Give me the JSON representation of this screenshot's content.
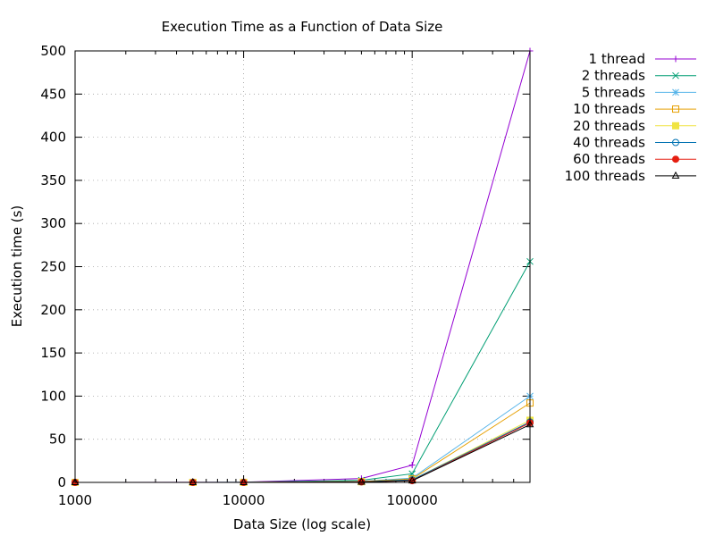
{
  "chart_data": {
    "type": "line",
    "title": "Execution Time as a Function of Data Size",
    "xlabel": "Data Size (log scale)",
    "ylabel": "Execution time (s)",
    "xscale": "log",
    "xlim": [
      1000,
      500000
    ],
    "ylim": [
      0,
      500
    ],
    "xticks": [
      1000,
      10000,
      100000
    ],
    "xtick_labels": [
      "1000",
      "10000",
      "100000"
    ],
    "yticks": [
      0,
      50,
      100,
      150,
      200,
      250,
      300,
      350,
      400,
      450,
      500
    ],
    "yticks_labels": [
      "0",
      "50",
      "100",
      "150",
      "200",
      "250",
      "300",
      "350",
      "400",
      "450",
      "500"
    ],
    "grid": true,
    "legend_position": "outside-top-right",
    "x": [
      1000,
      5000,
      10000,
      50000,
      100000,
      500000
    ],
    "series": [
      {
        "name": "1 thread",
        "color": "#9400d3",
        "marker": "plus",
        "values": [
          0.02,
          0.1,
          0.2,
          4.5,
          20,
          500
        ]
      },
      {
        "name": "2 threads",
        "color": "#009e73",
        "marker": "cross",
        "values": [
          0.01,
          0.05,
          0.1,
          2.5,
          10,
          256
        ]
      },
      {
        "name": "5 threads",
        "color": "#56b4e9",
        "marker": "star",
        "values": [
          0.01,
          0.03,
          0.05,
          1.2,
          5,
          100
        ]
      },
      {
        "name": "10 threads",
        "color": "#e69f00",
        "marker": "square-open",
        "values": [
          0.01,
          0.03,
          0.05,
          1,
          4,
          92
        ]
      },
      {
        "name": "20 threads",
        "color": "#f0e442",
        "marker": "square-filled",
        "values": [
          0.01,
          0.02,
          0.04,
          0.8,
          3,
          72
        ]
      },
      {
        "name": "40 threads",
        "color": "#0072b2",
        "marker": "circle-open",
        "values": [
          0.01,
          0.02,
          0.04,
          0.7,
          3,
          70
        ]
      },
      {
        "name": "60 threads",
        "color": "#e51e10",
        "marker": "circle-filled",
        "values": [
          0.01,
          0.02,
          0.03,
          0.6,
          2,
          69
        ]
      },
      {
        "name": "100 threads",
        "color": "#000000",
        "marker": "triangle-open",
        "values": [
          0.01,
          0.02,
          0.03,
          0.5,
          2,
          67
        ]
      }
    ]
  }
}
